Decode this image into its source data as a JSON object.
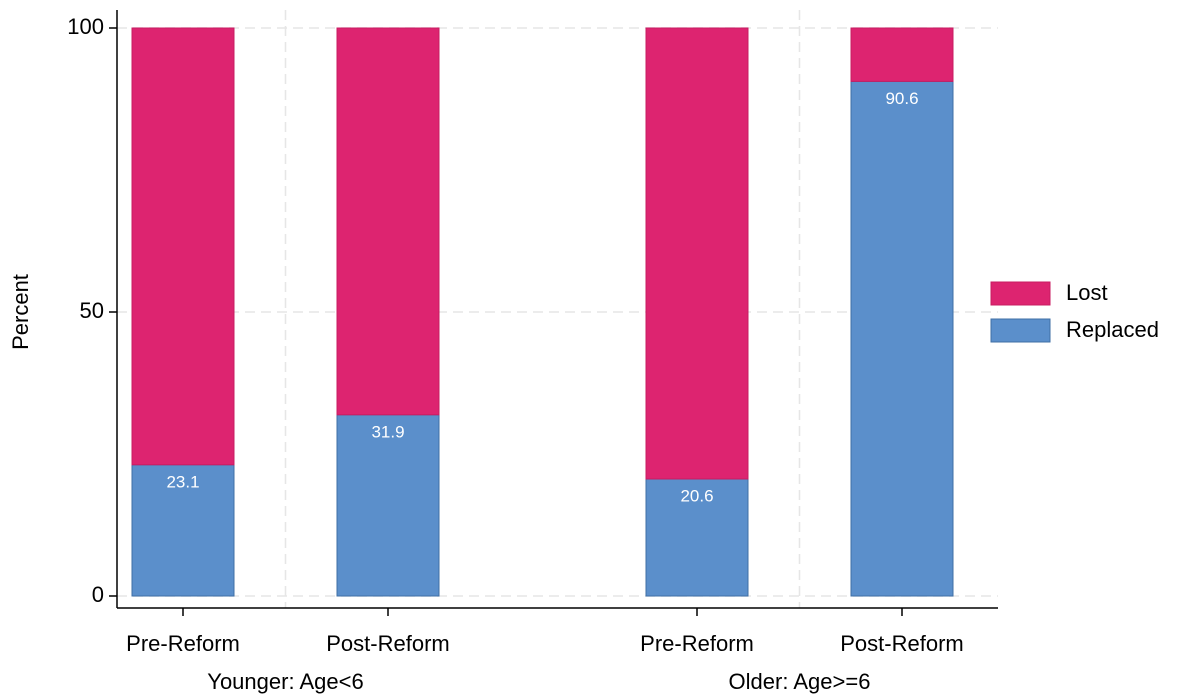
{
  "chart_data": {
    "type": "stacked_bar",
    "y_label": "Percent",
    "groups": [
      {
        "name": "Younger: Age<6",
        "categories": [
          "Pre-Reform",
          "Post-Reform"
        ]
      },
      {
        "name": "Older: Age>=6",
        "categories": [
          "Pre-Reform",
          "Post-Reform"
        ]
      }
    ],
    "series": [
      {
        "name": "Lost",
        "color": "#dd2470",
        "values": [
          76.9,
          68.1,
          79.4,
          9.4
        ],
        "labels": false
      },
      {
        "name": "Replaced",
        "color": "#5b8fcb",
        "values": [
          23.1,
          31.9,
          20.6,
          90.6
        ],
        "labels": true
      }
    ],
    "ylim": [
      0,
      100
    ],
    "yticks": [
      0,
      50,
      100
    ],
    "grid": true
  }
}
